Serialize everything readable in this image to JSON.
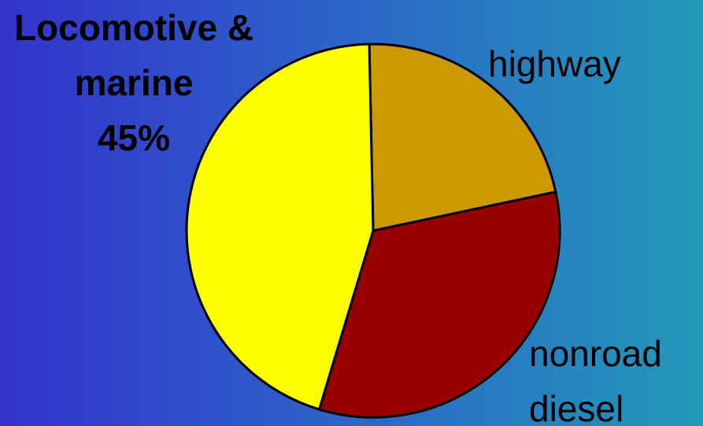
{
  "chart_data": {
    "type": "pie",
    "categories": [
      "highway",
      "nonroad diesel",
      "Locomotive & marine"
    ],
    "values": [
      22,
      33,
      45
    ],
    "value_labels": [
      null,
      null,
      "45%"
    ],
    "colors": [
      "#cc9900",
      "#990000",
      "#ffff00"
    ]
  }
}
